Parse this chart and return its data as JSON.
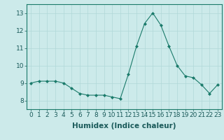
{
  "x": [
    0,
    1,
    2,
    3,
    4,
    5,
    6,
    7,
    8,
    9,
    10,
    11,
    12,
    13,
    14,
    15,
    16,
    17,
    18,
    19,
    20,
    21,
    22,
    23
  ],
  "y": [
    9.0,
    9.1,
    9.1,
    9.1,
    9.0,
    8.7,
    8.4,
    8.3,
    8.3,
    8.3,
    8.2,
    8.1,
    9.5,
    11.1,
    12.4,
    13.0,
    12.3,
    11.1,
    10.0,
    9.4,
    9.3,
    8.9,
    8.4,
    8.9
  ],
  "line_color": "#1a7a6a",
  "marker_color": "#1a7a6a",
  "bg_color": "#cceaea",
  "grid_color": "#b0d8d8",
  "xlabel": "Humidex (Indice chaleur)",
  "ylim": [
    7.5,
    13.5
  ],
  "xlim": [
    -0.5,
    23.5
  ],
  "yticks": [
    8,
    9,
    10,
    11,
    12,
    13
  ],
  "xticks": [
    0,
    1,
    2,
    3,
    4,
    5,
    6,
    7,
    8,
    9,
    10,
    11,
    12,
    13,
    14,
    15,
    16,
    17,
    18,
    19,
    20,
    21,
    22,
    23
  ],
  "xlabel_fontsize": 7.5,
  "tick_fontsize": 6.5
}
